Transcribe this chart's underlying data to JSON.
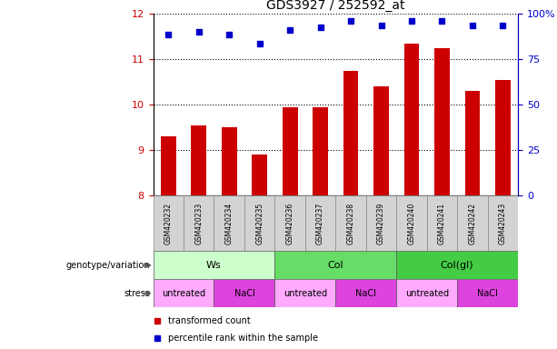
{
  "title": "GDS3927 / 252592_at",
  "samples": [
    "GSM420232",
    "GSM420233",
    "GSM420234",
    "GSM420235",
    "GSM420236",
    "GSM420237",
    "GSM420238",
    "GSM420239",
    "GSM420240",
    "GSM420241",
    "GSM420242",
    "GSM420243"
  ],
  "bar_values": [
    9.3,
    9.55,
    9.5,
    8.9,
    9.95,
    9.95,
    10.75,
    10.4,
    11.35,
    11.25,
    10.3,
    10.55
  ],
  "dot_values": [
    11.55,
    11.6,
    11.55,
    11.35,
    11.65,
    11.7,
    11.85,
    11.75,
    11.85,
    11.85,
    11.75,
    11.75
  ],
  "bar_color": "#cc0000",
  "dot_color": "#0000cc",
  "ylim_left": [
    8,
    12
  ],
  "ylim_right": [
    0,
    100
  ],
  "yticks_left": [
    8,
    9,
    10,
    11,
    12
  ],
  "yticks_right": [
    0,
    25,
    50,
    75,
    100
  ],
  "yticklabels_right": [
    "0",
    "25",
    "50",
    "75",
    "100%"
  ],
  "geno_data": [
    {
      "label": "Ws",
      "start": 0,
      "end": 4,
      "color": "#ccffcc"
    },
    {
      "label": "Col",
      "start": 4,
      "end": 8,
      "color": "#66dd66"
    },
    {
      "label": "Col(gl)",
      "start": 8,
      "end": 12,
      "color": "#44cc44"
    }
  ],
  "stress_data": [
    {
      "label": "untreated",
      "start": 0,
      "end": 2,
      "color": "#ffaaff"
    },
    {
      "label": "NaCl",
      "start": 2,
      "end": 4,
      "color": "#dd44dd"
    },
    {
      "label": "untreated",
      "start": 4,
      "end": 6,
      "color": "#ffaaff"
    },
    {
      "label": "NaCl",
      "start": 6,
      "end": 8,
      "color": "#dd44dd"
    },
    {
      "label": "untreated",
      "start": 8,
      "end": 10,
      "color": "#ffaaff"
    },
    {
      "label": "NaCl",
      "start": 10,
      "end": 12,
      "color": "#dd44dd"
    }
  ],
  "legend_bar_label": "transformed count",
  "legend_dot_label": "percentile rank within the sample",
  "bar_color_left": "#cc0000",
  "dot_color_right": "#0000cc",
  "gray_bg": "#d3d3d3",
  "label_geno": "genotype/variation",
  "label_stress": "stress"
}
